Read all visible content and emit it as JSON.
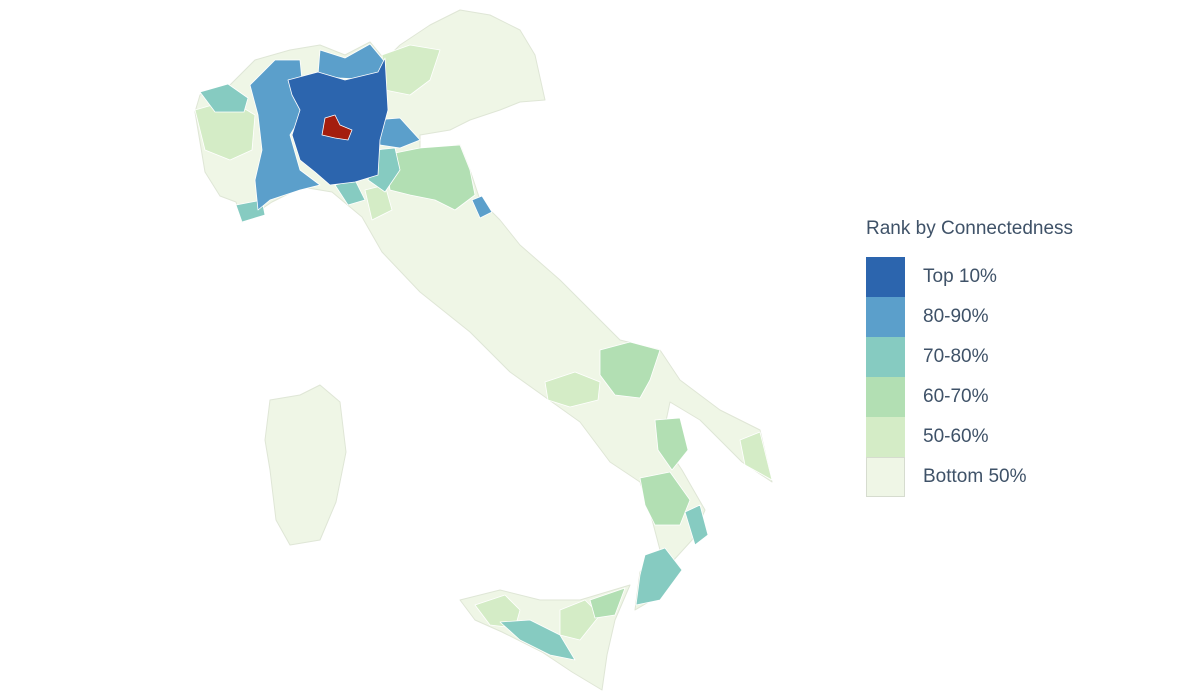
{
  "legend": {
    "title": "Rank by Connectedness",
    "items": [
      {
        "label": "Top 10%",
        "color": "#2c65ae"
      },
      {
        "label": "80-90%",
        "color": "#5b9fcb"
      },
      {
        "label": "70-80%",
        "color": "#86cbc1"
      },
      {
        "label": "60-70%",
        "color": "#b2dfb3"
      },
      {
        "label": "50-60%",
        "color": "#d4ecc6"
      },
      {
        "label": "Bottom 50%",
        "color": "#eff6e6"
      }
    ]
  },
  "highlight_color": "#a41d0e"
}
